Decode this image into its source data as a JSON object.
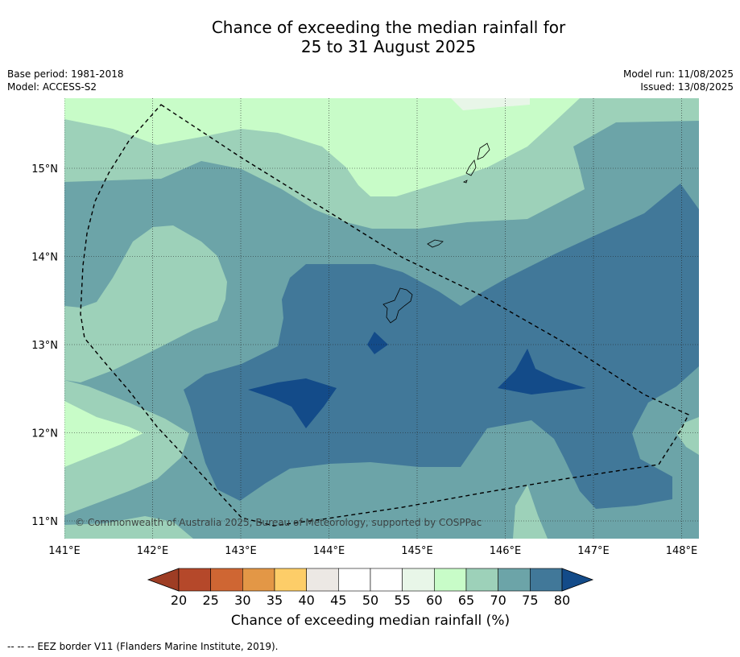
{
  "title": {
    "line1": "Chance of exceeding the median rainfall for",
    "line2": "25 to 31 August 2025"
  },
  "meta_left": {
    "base_period": "Base period: 1981-2018",
    "model": "Model: ACCESS-S2"
  },
  "meta_right": {
    "model_run": "Model run: 11/08/2025",
    "issued": "Issued: 13/08/2025"
  },
  "map": {
    "lon_labels": [
      "141°E",
      "142°E",
      "143°E",
      "144°E",
      "145°E",
      "146°E",
      "147°E",
      "148°E"
    ],
    "lat_labels": [
      "15°N",
      "14°N",
      "13°N",
      "12°N",
      "11°N"
    ],
    "copyright": "© Commonwealth of Australia 2025, Bureau of Meteorology, supported by COSPPac"
  },
  "colorbar": {
    "ticks": [
      "20",
      "25",
      "30",
      "35",
      "40",
      "45",
      "50",
      "55",
      "60",
      "65",
      "70",
      "75",
      "80"
    ],
    "colors": [
      "#b5482a",
      "#cf6633",
      "#e39746",
      "#fdcd68",
      "#ece8e4",
      "#ffffff",
      "#ffffff",
      "#e8f6e8",
      "#c8fcc8",
      "#9dd1b9",
      "#6ca4a8",
      "#417899"
    ],
    "under_color": "#9e3d24",
    "over_color": "#134b89",
    "label": "Chance of exceeding median rainfall (%)"
  },
  "footnote": "--  --  -- EEZ border V11 (Flanders Marine Institute, 2019)."
}
